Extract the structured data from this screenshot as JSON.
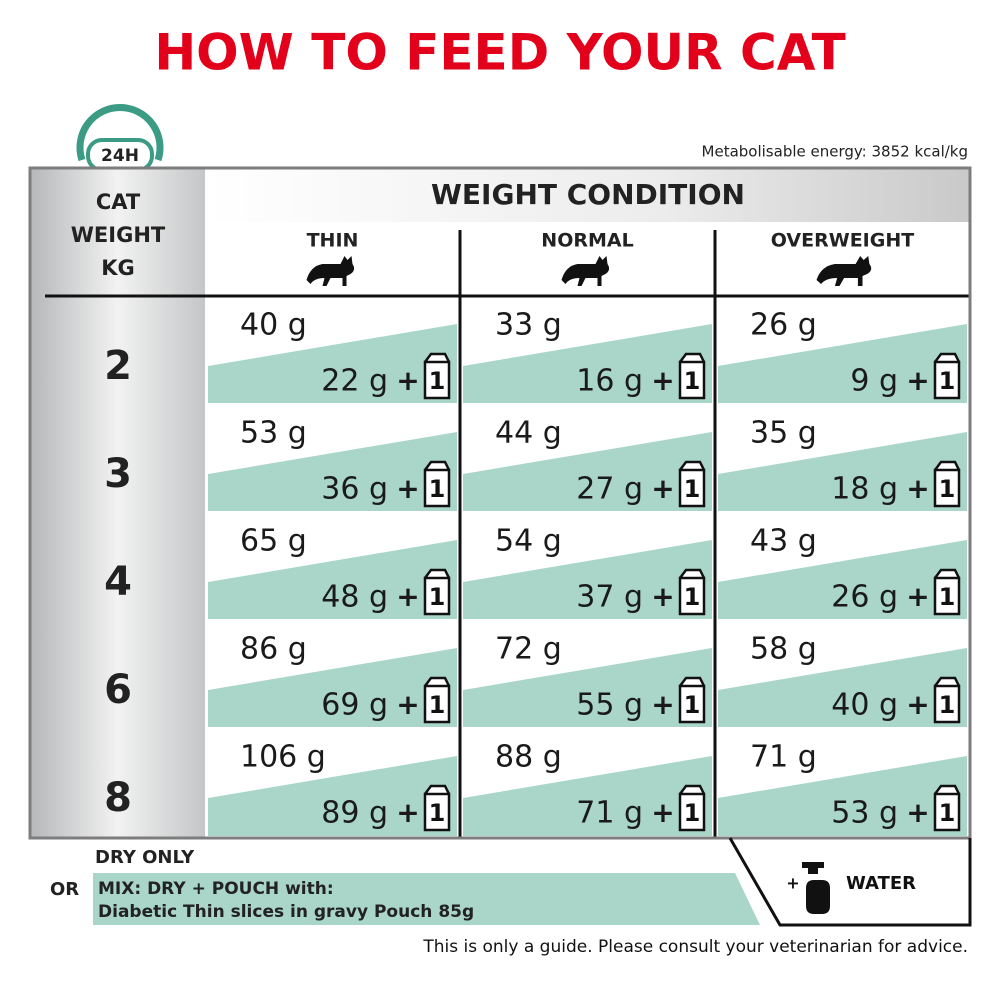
{
  "title": "HOW TO FEED YOUR CAT",
  "badge": "24H",
  "energy": "Metabolisable energy: 3852 kcal/kg",
  "table": {
    "row_header": [
      "CAT",
      "WEIGHT",
      "KG"
    ],
    "group_header": "WEIGHT CONDITION",
    "columns": [
      "THIN",
      "NORMAL",
      "OVERWEIGHT"
    ],
    "rows": [
      {
        "weight": "2",
        "cells": [
          {
            "dry": "40 g",
            "mix": "22 g"
          },
          {
            "dry": "33 g",
            "mix": "16 g"
          },
          {
            "dry": "26 g",
            "mix": "9 g"
          }
        ]
      },
      {
        "weight": "3",
        "cells": [
          {
            "dry": "53 g",
            "mix": "36 g"
          },
          {
            "dry": "44 g",
            "mix": "27 g"
          },
          {
            "dry": "35 g",
            "mix": "18 g"
          }
        ]
      },
      {
        "weight": "4",
        "cells": [
          {
            "dry": "65 g",
            "mix": "48 g"
          },
          {
            "dry": "54 g",
            "mix": "37 g"
          },
          {
            "dry": "43 g",
            "mix": "26 g"
          }
        ]
      },
      {
        "weight": "6",
        "cells": [
          {
            "dry": "86 g",
            "mix": "69 g"
          },
          {
            "dry": "72 g",
            "mix": "55 g"
          },
          {
            "dry": "58 g",
            "mix": "40 g"
          }
        ]
      },
      {
        "weight": "8",
        "cells": [
          {
            "dry": "106 g",
            "mix": "89 g"
          },
          {
            "dry": "88 g",
            "mix": "71 g"
          },
          {
            "dry": "71 g",
            "mix": "53 g"
          }
        ]
      }
    ]
  },
  "pouch": {
    "plus": "+",
    "count": "1"
  },
  "legend": {
    "dry": "DRY ONLY",
    "or": "OR",
    "mix": [
      "MIX: DRY + POUCH with:",
      "Diabetic Thin slices in gravy Pouch 85g"
    ],
    "water_plus": "+",
    "water": "WATER"
  },
  "footer": "This is only a guide. Please consult your veterinarian for advice."
}
